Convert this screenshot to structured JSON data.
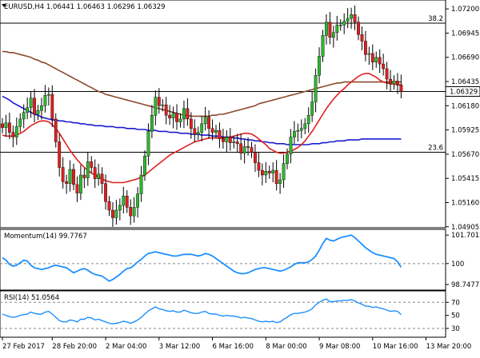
{
  "chart_data": [
    {
      "type": "candlestick",
      "symbol": "EURUSD",
      "timeframe": "H4",
      "title": "EURUSD,H4  1.06441 1.06463 1.06296 1.06329",
      "last_price": "1.06329",
      "ylim": [
        1.0492,
        1.0726
      ],
      "y_ticks": [
        1.072,
        1.06945,
        1.0669,
        1.06435,
        1.0618,
        1.05925,
        1.0567,
        1.05415,
        1.0516,
        1.04905
      ],
      "y_tick_labels": [
        "1.07200",
        "1.06945",
        "1.06690",
        "1.06435",
        "1.06180",
        "1.05925",
        "1.05670",
        "1.05415",
        "1.05160",
        "1.04905"
      ],
      "x_tick_labels": [
        {
          "i": 0,
          "label": "27 Feb 2017"
        },
        {
          "i": 14,
          "label": "28 Feb 20:00"
        },
        {
          "i": 29,
          "label": "2 Mar 04:00"
        },
        {
          "i": 44,
          "label": "3 Mar 12:00"
        },
        {
          "i": 59,
          "label": "6 Mar 16:00"
        },
        {
          "i": 74,
          "label": "8 Mar 00:00"
        },
        {
          "i": 89,
          "label": "9 Mar 08:00"
        },
        {
          "i": 104,
          "label": "10 Mar 16:00"
        },
        {
          "i": 119,
          "label": "13 Mar 20:00"
        }
      ],
      "levels": [
        {
          "name": "38.2",
          "value": 1.0705
        },
        {
          "name": "23.6",
          "value": 1.0569
        }
      ],
      "closes": [
        1.0595,
        1.06,
        1.059,
        1.0585,
        1.0596,
        1.0604,
        1.0611,
        1.0616,
        1.0626,
        1.0609,
        1.0613,
        1.0618,
        1.0629,
        1.063,
        1.0604,
        1.058,
        1.0553,
        1.0538,
        1.0536,
        1.0551,
        1.0535,
        1.0526,
        1.0545,
        1.0542,
        1.0559,
        1.0553,
        1.0541,
        1.0546,
        1.0536,
        1.0517,
        1.0508,
        1.05,
        1.0508,
        1.0513,
        1.0523,
        1.0511,
        1.0502,
        1.0511,
        1.0525,
        1.0545,
        1.0565,
        1.0591,
        1.0608,
        1.0627,
        1.0618,
        1.0619,
        1.0608,
        1.0605,
        1.061,
        1.0601,
        1.0604,
        1.0615,
        1.0604,
        1.0594,
        1.0588,
        1.059,
        1.0599,
        1.0606,
        1.0594,
        1.059,
        1.0592,
        1.0583,
        1.058,
        1.0585,
        1.0579,
        1.058,
        1.0578,
        1.0568,
        1.0575,
        1.0574,
        1.0569,
        1.0558,
        1.055,
        1.0545,
        1.0549,
        1.0547,
        1.055,
        1.0536,
        1.054,
        1.0557,
        1.0567,
        1.0585,
        1.0591,
        1.0592,
        1.0594,
        1.0599,
        1.0608,
        1.0622,
        1.065,
        1.067,
        1.0692,
        1.0706,
        1.069,
        1.0695,
        1.0703,
        1.0703,
        1.0707,
        1.071,
        1.0714,
        1.0706,
        1.0693,
        1.0686,
        1.0672,
        1.0673,
        1.0664,
        1.0669,
        1.0662,
        1.0657,
        1.0646,
        1.0641,
        1.0644,
        1.064,
        1.0633
      ],
      "series": [
        {
          "name": "slow MA",
          "color": "#8b4a2b",
          "values": [
            1.0675,
            1.0675,
            1.0674,
            1.0674,
            1.0673,
            1.0672,
            1.0671,
            1.067,
            1.0669,
            1.0667,
            1.0666,
            1.0664,
            1.0663,
            1.0661,
            1.0659,
            1.0657,
            1.0655,
            1.0653,
            1.0651,
            1.0649,
            1.0647,
            1.0645,
            1.0643,
            1.0641,
            1.0639,
            1.0637,
            1.0635,
            1.0633,
            1.0632,
            1.063,
            1.0629,
            1.0628,
            1.0627,
            1.0626,
            1.0625,
            1.0624,
            1.0623,
            1.0622,
            1.0621,
            1.062,
            1.0619,
            1.0618,
            1.0617,
            1.0616,
            1.0615,
            1.0614,
            1.0613,
            1.0612,
            1.0611,
            1.061,
            1.0609,
            1.0608,
            1.0608,
            1.0607,
            1.0607,
            1.0607,
            1.0607,
            1.0607,
            1.0607,
            1.0608,
            1.0608,
            1.0609,
            1.0609,
            1.061,
            1.0611,
            1.0612,
            1.0613,
            1.0614,
            1.0615,
            1.0616,
            1.0617,
            1.0618,
            1.062,
            1.0621,
            1.0622,
            1.0623,
            1.0624,
            1.0625,
            1.0626,
            1.0627,
            1.0628,
            1.0629,
            1.063,
            1.0631,
            1.0632,
            1.0633,
            1.0634,
            1.0635,
            1.0636,
            1.0637,
            1.0638,
            1.0639,
            1.064,
            1.0641,
            1.0642,
            1.0642,
            1.0643,
            1.0643,
            1.0643,
            1.0643,
            1.0643,
            1.0643,
            1.0643,
            1.0643,
            1.0643,
            1.0643,
            1.0643,
            1.0643,
            1.0643,
            1.0643,
            1.0643,
            1.0643,
            1.0643
          ]
        },
        {
          "name": "blue MA",
          "color": "#1a1ad0",
          "values": [
            1.0628,
            1.0626,
            1.0624,
            1.0621,
            1.0619,
            1.0617,
            1.0615,
            1.0613,
            1.0611,
            1.0609,
            1.0608,
            1.0606,
            1.0605,
            1.0604,
            1.0603,
            1.0603,
            1.0602,
            1.0602,
            1.0601,
            1.0601,
            1.06,
            1.06,
            1.0599,
            1.0599,
            1.0598,
            1.0598,
            1.0597,
            1.0597,
            1.0597,
            1.0596,
            1.0596,
            1.0596,
            1.0595,
            1.0595,
            1.0595,
            1.0594,
            1.0594,
            1.0594,
            1.0593,
            1.0593,
            1.0593,
            1.0592,
            1.0592,
            1.0592,
            1.0591,
            1.0591,
            1.0591,
            1.059,
            1.059,
            1.059,
            1.0589,
            1.0589,
            1.0589,
            1.0588,
            1.0588,
            1.0588,
            1.0587,
            1.0587,
            1.0587,
            1.0586,
            1.0586,
            1.0586,
            1.0585,
            1.0585,
            1.0585,
            1.0584,
            1.0584,
            1.0583,
            1.0583,
            1.0582,
            1.0582,
            1.0581,
            1.0581,
            1.058,
            1.058,
            1.0579,
            1.0579,
            1.0578,
            1.0578,
            1.0578,
            1.0577,
            1.0577,
            1.0577,
            1.0577,
            1.0577,
            1.0577,
            1.0577,
            1.0578,
            1.0578,
            1.0578,
            1.0579,
            1.0579,
            1.058,
            1.058,
            1.0581,
            1.0581,
            1.0581,
            1.0582,
            1.0582,
            1.0582,
            1.0582,
            1.0583,
            1.0583,
            1.0583,
            1.0583,
            1.0583,
            1.0583,
            1.0583,
            1.0583,
            1.0583,
            1.0583,
            1.0583,
            1.0583
          ]
        },
        {
          "name": "red MA",
          "color": "#e02020",
          "values": [
            1.0587,
            1.0586,
            1.0586,
            1.0586,
            1.0587,
            1.0589,
            1.0591,
            1.0594,
            1.0597,
            1.0599,
            1.0601,
            1.0602,
            1.0602,
            1.0601,
            1.0598,
            1.0594,
            1.0589,
            1.0583,
            1.0577,
            1.0571,
            1.0566,
            1.0561,
            1.0557,
            1.0553,
            1.055,
            1.0547,
            1.0545,
            1.0543,
            1.0541,
            1.0539,
            1.0538,
            1.0537,
            1.0537,
            1.0537,
            1.0537,
            1.0538,
            1.0539,
            1.054,
            1.0541,
            1.0543,
            1.0545,
            1.0548,
            1.0551,
            1.0554,
            1.0557,
            1.056,
            1.0563,
            1.0566,
            1.0568,
            1.057,
            1.0572,
            1.0574,
            1.0576,
            1.0578,
            1.058,
            1.0581,
            1.0582,
            1.0583,
            1.0584,
            1.0584,
            1.0584,
            1.0584,
            1.0584,
            1.0584,
            1.0585,
            1.0586,
            1.0587,
            1.0588,
            1.0589,
            1.0589,
            1.0588,
            1.0586,
            1.0583,
            1.058,
            1.0577,
            1.0573,
            1.0571,
            1.0569,
            1.0568,
            1.0568,
            1.0569,
            1.057,
            1.0572,
            1.0574,
            1.0577,
            1.0581,
            1.0586,
            1.0591,
            1.0597,
            1.0603,
            1.0609,
            1.0615,
            1.062,
            1.0625,
            1.0629,
            1.0633,
            1.0636,
            1.064,
            1.0643,
            1.0646,
            1.0649,
            1.0651,
            1.0652,
            1.0652,
            1.065,
            1.0648,
            1.0645,
            1.0643,
            1.0642,
            1.0641,
            1.0641,
            1.064,
            1.064
          ]
        }
      ],
      "colors": {
        "bull": "#2eb82e",
        "bear": "#e02020",
        "wick": "#000000",
        "level": "#000000"
      }
    },
    {
      "type": "line",
      "title": "Momentum(14) 99.7767",
      "ylim": [
        98.56,
        101.9
      ],
      "y_tick_labels": [
        "101.7012",
        "100",
        "98.7477"
      ],
      "reference_value": 100,
      "color": "#1e90ff",
      "values": [
        100.35,
        100.2,
        99.95,
        99.85,
        99.9,
        100.05,
        100.2,
        100.15,
        99.9,
        99.75,
        99.7,
        99.65,
        99.7,
        99.75,
        99.85,
        99.9,
        99.85,
        99.8,
        99.75,
        99.6,
        99.45,
        99.55,
        99.65,
        99.7,
        99.6,
        99.45,
        99.35,
        99.3,
        99.25,
        99.1,
        98.95,
        99.05,
        99.2,
        99.35,
        99.55,
        99.7,
        99.75,
        99.9,
        100.1,
        100.25,
        100.45,
        100.6,
        100.65,
        100.7,
        100.65,
        100.6,
        100.55,
        100.5,
        100.45,
        100.45,
        100.5,
        100.55,
        100.55,
        100.55,
        100.5,
        100.45,
        100.5,
        100.6,
        100.55,
        100.45,
        100.3,
        100.15,
        100.0,
        99.85,
        99.7,
        99.55,
        99.45,
        99.4,
        99.4,
        99.45,
        99.55,
        99.65,
        99.7,
        99.75,
        99.75,
        99.7,
        99.65,
        99.6,
        99.55,
        99.6,
        99.7,
        99.8,
        99.95,
        100.05,
        100.05,
        100.05,
        100.1,
        100.25,
        100.45,
        100.8,
        101.2,
        101.5,
        101.4,
        101.35,
        101.45,
        101.55,
        101.6,
        101.65,
        101.7,
        101.55,
        101.35,
        101.15,
        100.95,
        100.8,
        100.65,
        100.55,
        100.5,
        100.45,
        100.4,
        100.35,
        100.3,
        100.1,
        99.78
      ]
    },
    {
      "type": "line",
      "title": "RSI(14) 51.0564",
      "ylim": [
        19,
        85
      ],
      "y_tick_labels": [
        "70",
        "50",
        "30"
      ],
      "levels": [
        70,
        30
      ],
      "color": "#1e90ff",
      "values": [
        52,
        50,
        48,
        47,
        48,
        50,
        51,
        52,
        55,
        53,
        52,
        52,
        55,
        56,
        52,
        47,
        42,
        40,
        40,
        43,
        42,
        40,
        44,
        44,
        47,
        46,
        43,
        44,
        42,
        40,
        38,
        37,
        38,
        39,
        41,
        40,
        38,
        40,
        43,
        47,
        52,
        57,
        60,
        63,
        60,
        59,
        57,
        56,
        57,
        55,
        55,
        58,
        56,
        54,
        53,
        53,
        55,
        56,
        53,
        52,
        52,
        50,
        49,
        50,
        49,
        49,
        48,
        46,
        47,
        46,
        45,
        43,
        41,
        40,
        41,
        40,
        41,
        39,
        40,
        44,
        47,
        51,
        53,
        53,
        54,
        55,
        57,
        60,
        66,
        70,
        73,
        75,
        71,
        71,
        72,
        72,
        73,
        73,
        74,
        72,
        69,
        67,
        64,
        64,
        62,
        63,
        61,
        60,
        58,
        56,
        57,
        56,
        51
      ]
    }
  ]
}
